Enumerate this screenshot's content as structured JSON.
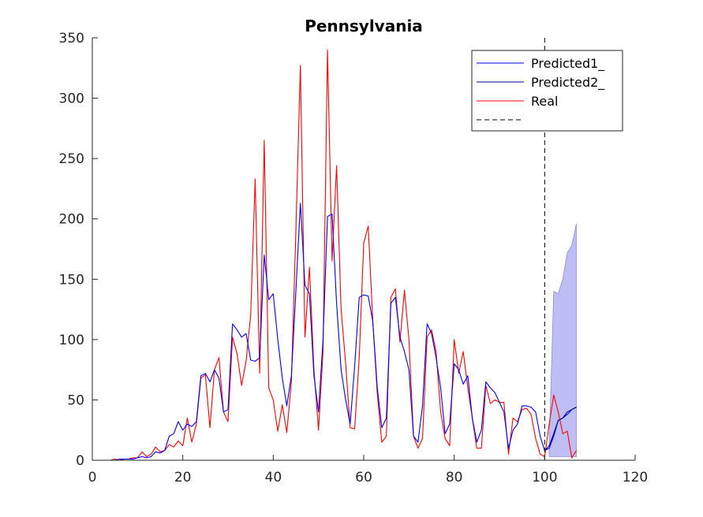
{
  "chart_data": {
    "type": "line",
    "title": "Pennsylvania",
    "xlabel": "",
    "ylabel": "",
    "xlim": [
      0,
      120
    ],
    "ylim": [
      0,
      350
    ],
    "xticks": [
      0,
      20,
      40,
      60,
      80,
      100,
      120
    ],
    "yticks": [
      0,
      50,
      100,
      150,
      200,
      250,
      300,
      350
    ],
    "grid": false,
    "legend": {
      "placement": "top-right",
      "entries": [
        "Predicted1_",
        "Predicted2_",
        "Real",
        ""
      ]
    },
    "vline_x": 100,
    "colors": {
      "predicted1": "#0000ff",
      "predicted2": "#000080",
      "real": "#ff0000",
      "band": "#b3b3f2",
      "vline": "#000000"
    },
    "series": [
      {
        "name": "Real",
        "x": [
          1,
          2,
          3,
          4,
          5,
          6,
          7,
          8,
          9,
          10,
          11,
          12,
          13,
          14,
          15,
          16,
          17,
          18,
          19,
          20,
          21,
          22,
          23,
          24,
          25,
          26,
          27,
          28,
          29,
          30,
          31,
          32,
          33,
          34,
          35,
          36,
          37,
          38,
          39,
          40,
          41,
          42,
          43,
          44,
          45,
          46,
          47,
          48,
          49,
          50,
          51,
          52,
          53,
          54,
          55,
          56,
          57,
          58,
          59,
          60,
          61,
          62,
          63,
          64,
          65,
          66,
          67,
          68,
          69,
          70,
          71,
          72,
          73,
          74,
          75,
          76,
          77,
          78,
          79,
          80,
          81,
          82,
          83,
          84,
          85,
          86,
          87,
          88,
          89,
          90,
          91,
          92,
          93,
          94,
          95,
          96,
          97,
          98,
          99,
          100,
          101,
          102,
          103,
          104,
          105,
          106,
          107
        ],
        "values": [
          0,
          0,
          0,
          0,
          1,
          0,
          1,
          1,
          2,
          2,
          7,
          3,
          5,
          11,
          7,
          8,
          13,
          11,
          16,
          12,
          35,
          15,
          30,
          68,
          71,
          27,
          75,
          85,
          40,
          32,
          102,
          88,
          62,
          82,
          120,
          233,
          72,
          265,
          60,
          50,
          24,
          46,
          23,
          65,
          190,
          327,
          102,
          160,
          75,
          25,
          90,
          340,
          165,
          244,
          125,
          80,
          27,
          26,
          85,
          180,
          194,
          115,
          55,
          15,
          20,
          135,
          142,
          98,
          141,
          100,
          20,
          10,
          18,
          102,
          108,
          90,
          40,
          18,
          12,
          100,
          72,
          90,
          60,
          35,
          10,
          10,
          62,
          47,
          50,
          48,
          48,
          5,
          35,
          32,
          42,
          43,
          38,
          18,
          5,
          3,
          30,
          54,
          40,
          22,
          24,
          2,
          8
        ]
      },
      {
        "name": "Predicted1_",
        "x": [
          1,
          2,
          3,
          4,
          5,
          6,
          7,
          8,
          9,
          10,
          11,
          12,
          13,
          14,
          15,
          16,
          17,
          18,
          19,
          20,
          21,
          22,
          23,
          24,
          25,
          26,
          27,
          28,
          29,
          30,
          31,
          32,
          33,
          34,
          35,
          36,
          37,
          38,
          39,
          40,
          41,
          42,
          43,
          44,
          45,
          46,
          47,
          48,
          49,
          50,
          51,
          52,
          53,
          54,
          55,
          56,
          57,
          58,
          59,
          60,
          61,
          62,
          63,
          64,
          65,
          66,
          67,
          68,
          69,
          70,
          71,
          72,
          73,
          74,
          75,
          76,
          77,
          78,
          79,
          80,
          81,
          82,
          83,
          84,
          85,
          86,
          87,
          88,
          89,
          90,
          91,
          92,
          93,
          94,
          95,
          96,
          97,
          98,
          99,
          100,
          101,
          102,
          103,
          104,
          105,
          106,
          107
        ],
        "values": [
          0,
          0,
          0,
          0,
          0,
          1,
          1,
          1,
          1,
          2,
          3,
          2,
          3,
          7,
          6,
          8,
          20,
          22,
          32,
          25,
          30,
          28,
          32,
          70,
          72,
          65,
          75,
          68,
          40,
          42,
          113,
          108,
          102,
          105,
          83,
          82,
          85,
          170,
          133,
          138,
          100,
          68,
          45,
          70,
          140,
          213,
          145,
          138,
          70,
          40,
          100,
          202,
          204,
          130,
          75,
          50,
          30,
          78,
          135,
          137,
          136,
          115,
          60,
          27,
          35,
          130,
          135,
          102,
          90,
          75,
          20,
          15,
          45,
          113,
          105,
          85,
          60,
          22,
          30,
          80,
          75,
          63,
          70,
          35,
          15,
          25,
          65,
          60,
          56,
          48,
          40,
          10,
          25,
          30,
          45,
          45,
          44,
          40,
          20,
          8,
          10,
          20,
          33,
          35,
          38,
          42,
          44
        ]
      },
      {
        "name": "Predicted2_",
        "x": [
          100,
          101,
          102,
          103,
          104,
          105,
          106,
          107
        ],
        "values": [
          8,
          12,
          22,
          33,
          35,
          40,
          42,
          44
        ]
      }
    ],
    "band": {
      "x": [
        101,
        102,
        103,
        104,
        105,
        106,
        107
      ],
      "lower": [
        3,
        3,
        3,
        3,
        3,
        3,
        3
      ],
      "upper": [
        12,
        140,
        138,
        150,
        172,
        178,
        196
      ]
    }
  }
}
